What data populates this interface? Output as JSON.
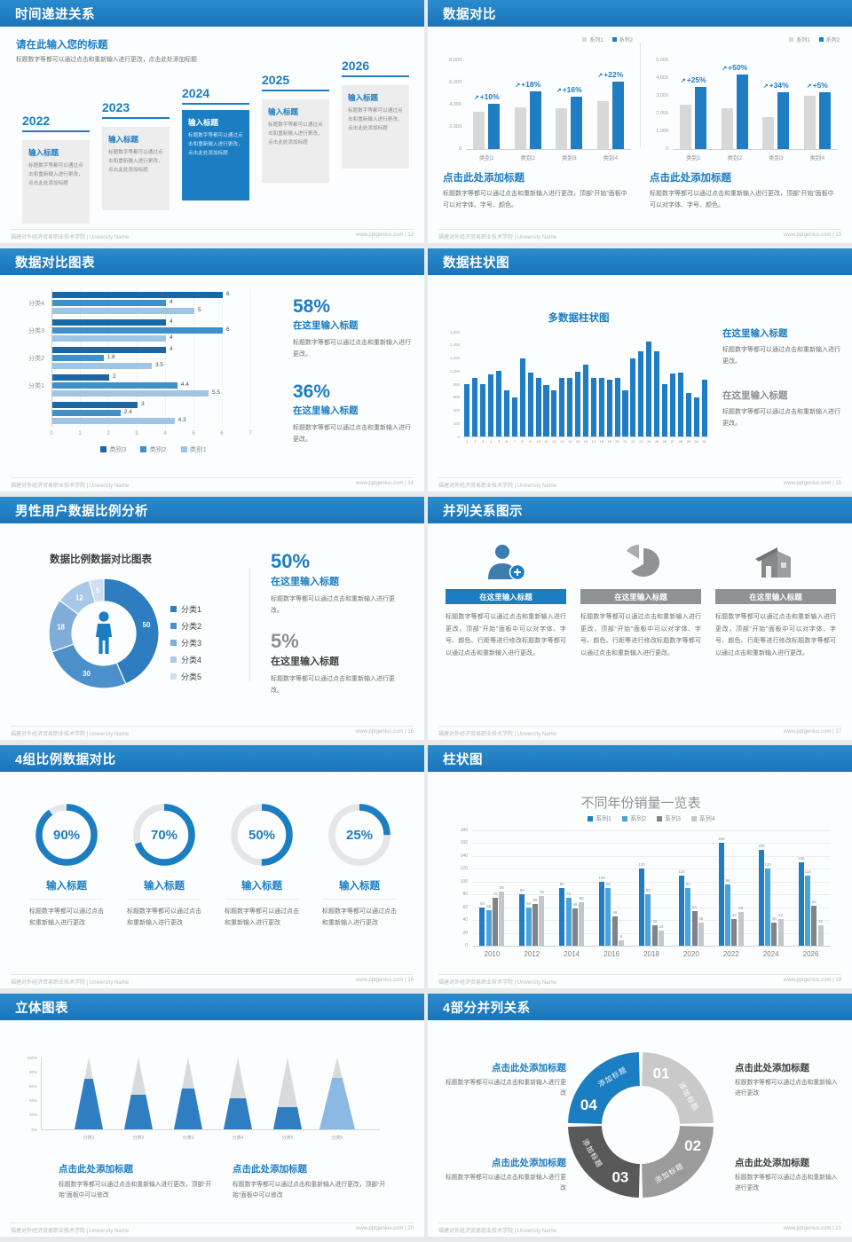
{
  "colors": {
    "accent": "#1b7dc2",
    "bar_blue": "#1f7dc4",
    "bar_gray": "#d8d8d8",
    "dark_text": "#3c4043",
    "body_text": "#6f6f6f"
  },
  "icons": {
    "growth_arrow": "↗"
  },
  "footer": {
    "org": "福建对外经济贸易职业技术学院 | University Name",
    "site": "www.pptgenius.com"
  },
  "slides": [
    {
      "title": "时间递进关系",
      "page": "12",
      "intro_title": "请在此输入您的标题",
      "intro_body": "标题数字等都可以通过点击和重新输入进行更改，点击此处添加标题",
      "milestones": [
        {
          "year": "2022",
          "heading": "输入标题",
          "body": "标题数字等都可以通过点击和重新输入进行更改，点击此处添加标题",
          "highlight": false
        },
        {
          "year": "2023",
          "heading": "输入标题",
          "body": "标题数字等都可以通过点击和重新输入进行更改，点击此处添加标题",
          "highlight": false
        },
        {
          "year": "2024",
          "heading": "输入标题",
          "body": "标题数字等都可以通过点击和重新输入进行更改，点击此处添加标题",
          "highlight": true
        },
        {
          "year": "2025",
          "heading": "输入标题",
          "body": "标题数字等都可以通过点击和重新输入进行更改，点击此处添加标题",
          "highlight": false
        },
        {
          "year": "2026",
          "heading": "输入标题",
          "body": "标题数字等都可以通过点击和重新输入进行更改，点击此处添加标题",
          "highlight": false
        }
      ]
    },
    {
      "title": "数据对比",
      "page": "13",
      "blocks": [
        {
          "heading": "点击此处添加标题",
          "body": "标题数字等都可以通过点击和重新输入进行更改，顶部“开始”面板中可以对字体、字号、颜色。"
        },
        {
          "heading": "点击此处添加标题",
          "body": "标题数字等都可以通过点击和重新输入进行更改，顶部“开始”面板中可以对字体、字号、颜色。"
        }
      ]
    },
    {
      "title": "数据对比图表",
      "page": "14",
      "stats": [
        {
          "value": "58%",
          "heading": "在这里输入标题",
          "body": "标题数字等都可以通过点击和重新输入进行更改。"
        },
        {
          "value": "36%",
          "heading": "在这里输入标题",
          "body": "标题数字等都可以通过点击和重新输入进行更改。"
        }
      ]
    },
    {
      "title": "数据柱状图",
      "page": "15",
      "chart_title": "多数据柱状图",
      "stats": [
        {
          "heading": "在这里输入标题",
          "body": "标题数字等都可以通过点击和重新输入进行更改。"
        },
        {
          "heading": "在这里输入标题",
          "body": "标题数字等都可以通过点击和重新输入进行更改。"
        }
      ]
    },
    {
      "title": "男性用户数据比例分析",
      "page": "16",
      "chart_title": "数据比例数据对比图表",
      "stats": [
        {
          "value": "50%",
          "heading": "在这里输入标题",
          "body": "标题数字等都可以通过点击和重新输入进行更改。"
        },
        {
          "value": "5%",
          "heading": "在这里输入标题",
          "body": "标题数字等都可以通过点击和重新输入进行更改。"
        }
      ]
    },
    {
      "title": "并列关系图示",
      "page": "17",
      "columns": [
        {
          "icon": "user-add-icon",
          "heading": "在这里输入标题",
          "body": "标题数字等都可以通过点击和重新输入进行更改，顶部“开始”面板中可以对字体、字号、颜色、行距等进行修改标题数字等都可以通过点击和重新输入进行更改。",
          "accent": true
        },
        {
          "icon": "pie-chart-icon",
          "heading": "在这里输入标题",
          "body": "标题数字等都可以通过点击和重新输入进行更改，顶部“开始”面板中可以对字体、字号、颜色、行距等进行修改标题数字等都可以通过点击和重新输入进行更改。",
          "accent": false
        },
        {
          "icon": "building-icon",
          "heading": "在这里输入标题",
          "body": "标题数字等都可以通过点击和重新输入进行更改，顶部“开始”面板中可以对字体、字号、颜色、行距等进行修改标题数字等都可以通过点击和重新输入进行更改。",
          "accent": false
        }
      ]
    },
    {
      "title": "4组比例数据对比",
      "page": "18",
      "rings": [
        {
          "label": "90%",
          "heading": "输入标题",
          "body": "标题数字等都可以通过点击和重新输入进行更改"
        },
        {
          "label": "70%",
          "heading": "输入标题",
          "body": "标题数字等都可以通过点击和重新输入进行更改"
        },
        {
          "label": "50%",
          "heading": "输入标题",
          "body": "标题数字等都可以通过点击和重新输入进行更改"
        },
        {
          "label": "25%",
          "heading": "输入标题",
          "body": "标题数字等都可以通过点击和重新输入进行更改"
        }
      ]
    },
    {
      "title": "柱状图",
      "page": "19",
      "chart_title": "不同年份销量一览表"
    },
    {
      "title": "立体图表",
      "page": "20",
      "blocks": [
        {
          "heading": "点击此处添加标题",
          "body": "标题数字等都可以通过点击和重新输入进行更改，顶部“开始”面板中可以修改"
        },
        {
          "heading": "点击此处添加标题",
          "body": "标题数字等都可以通过点击和重新输入进行更改，顶部“开始”面板中可以修改"
        }
      ]
    },
    {
      "title": "4部分并列关系",
      "page": "21",
      "segments": [
        {
          "num": "01",
          "label": "添加标题",
          "color": "#c9c9c9"
        },
        {
          "num": "02",
          "label": "添加标题",
          "color": "#9b9b9b"
        },
        {
          "num": "03",
          "label": "添加标题",
          "color": "#595959"
        },
        {
          "num": "04",
          "label": "添加标题",
          "color": "#1b7dc2"
        }
      ],
      "corners": [
        {
          "pos": "top-left",
          "heading": "点击此处添加标题",
          "body": "标题数字等都可以通过点击和重新输入进行更改"
        },
        {
          "pos": "top-right",
          "heading": "点击此处添加标题",
          "body": "标题数字等都可以通过点击和重新输入进行更改"
        },
        {
          "pos": "bottom-left",
          "heading": "点击此处添加标题",
          "body": "标题数字等都可以通过点击和重新输入进行更改"
        },
        {
          "pos": "bottom-right",
          "heading": "点击此处添加标题",
          "body": "标题数字等都可以通过点击和重新输入进行更改"
        }
      ]
    }
  ],
  "chart_data": [
    {
      "id": "growth-bars-left",
      "type": "bar",
      "categories": [
        "类别1",
        "类别2",
        "类别3",
        "类别4"
      ],
      "series": [
        {
          "name": "系列1",
          "color": "#d8d8d8",
          "values": [
            3400,
            3800,
            3700,
            4300
          ]
        },
        {
          "name": "系列2",
          "color": "#1f7dc4",
          "values": [
            4100,
            5200,
            4700,
            6100
          ]
        }
      ],
      "growth_labels": [
        "+10%",
        "+18%",
        "+16%",
        "+22%"
      ],
      "ylim": [
        0,
        8000
      ],
      "yticks": [
        0,
        2000,
        4000,
        6000,
        8000
      ]
    },
    {
      "id": "growth-bars-right",
      "type": "bar",
      "categories": [
        "类别1",
        "类别2",
        "类别3",
        "类别4"
      ],
      "series": [
        {
          "name": "系列1",
          "color": "#d8d8d8",
          "values": [
            2500,
            2300,
            1800,
            3000
          ]
        },
        {
          "name": "系列2",
          "color": "#1f7dc4",
          "values": [
            3500,
            4200,
            3200,
            3200
          ]
        }
      ],
      "growth_labels": [
        "+25%",
        "+50%",
        "+34%",
        "+5%"
      ],
      "ylim": [
        0,
        5000
      ],
      "yticks": [
        0,
        1000,
        2000,
        3000,
        4000,
        5000
      ]
    },
    {
      "id": "category-hbars",
      "type": "bar",
      "orientation": "horizontal",
      "groups": [
        "分类4",
        "分类3",
        "分类2",
        "分类1",
        ""
      ],
      "series": [
        {
          "name": "类别3",
          "color": "#1a67a8",
          "values": [
            6,
            4,
            4,
            2,
            3
          ]
        },
        {
          "name": "类别2",
          "color": "#3f8fca",
          "values": [
            4,
            6,
            1.8,
            4.4,
            2.4
          ]
        },
        {
          "name": "类别1",
          "color": "#9fc5e4",
          "values": [
            5,
            4,
            3.5,
            5.5,
            4.3
          ]
        }
      ],
      "xlim": [
        0,
        7
      ],
      "xticks": [
        0,
        1,
        2,
        3,
        4,
        5,
        6,
        7
      ]
    },
    {
      "id": "multi-columns",
      "type": "bar",
      "title": "多数据柱状图",
      "x_labels_range": [
        1,
        31
      ],
      "values": [
        800,
        900,
        800,
        950,
        1010,
        700,
        600,
        1200,
        980,
        890,
        780,
        700,
        890,
        890,
        990,
        1100,
        890,
        890,
        870,
        890,
        700,
        1200,
        1300,
        1450,
        1300,
        800,
        960,
        970,
        660,
        600,
        870
      ],
      "ylim": [
        0,
        1600
      ],
      "ytick_step": 200,
      "color": "#1f7dc4"
    },
    {
      "id": "male-donut",
      "type": "pie",
      "title": "数据比例数据对比图表",
      "labels": [
        "分类1",
        "分类2",
        "分类3",
        "分类4",
        "分类5"
      ],
      "values": [
        50,
        30,
        18,
        12,
        5
      ],
      "colors": [
        "#2e7dc0",
        "#4c90cb",
        "#7facd9",
        "#a9c7e6",
        "#cfdef0"
      ]
    },
    {
      "id": "progress-rings",
      "type": "pie",
      "variant": "rings",
      "values": [
        90,
        70,
        50,
        25
      ],
      "color": "#1b7dc2",
      "track": "#e4e6e8"
    },
    {
      "id": "yearly-sales",
      "type": "bar",
      "title": "不同年份销量一览表",
      "categories": [
        "2010",
        "2012",
        "2014",
        "2016",
        "2018",
        "2020",
        "2022",
        "2024",
        "2026"
      ],
      "series": [
        {
          "name": "系列1",
          "color": "#1f7dc4",
          "values": [
            60,
            80,
            90,
            100,
            120,
            110,
            160,
            150,
            130
          ]
        },
        {
          "name": "系列2",
          "color": "#4ba3dc",
          "values": [
            55,
            60,
            75,
            90,
            80,
            90,
            96,
            120,
            110
          ]
        },
        {
          "name": "系列3",
          "color": "#7f8488",
          "values": [
            75,
            65,
            58,
            46,
            32,
            54,
            42,
            36,
            62
          ]
        },
        {
          "name": "系列4",
          "color": "#c3c7ca",
          "values": [
            85,
            78,
            68,
            8,
            24,
            36,
            53,
            42,
            32
          ]
        }
      ],
      "ylim": [
        0,
        180
      ],
      "ytick_step": 20
    },
    {
      "id": "cone-chart",
      "type": "bar",
      "variant": "cone",
      "categories": [
        "分类1",
        "分类2",
        "分类3",
        "分类4",
        "分类5",
        "分类6"
      ],
      "values_pct": [
        70,
        48,
        57,
        43,
        31,
        72
      ],
      "colors": [
        "#2e7ec1",
        "#2e7ec1",
        "#2e7ec1",
        "#2e7ec1",
        "#2e7ec1",
        "#8cb9e3"
      ],
      "yticks": [
        "0%",
        "20%",
        "40%",
        "60%",
        "80%",
        "100%"
      ]
    }
  ]
}
